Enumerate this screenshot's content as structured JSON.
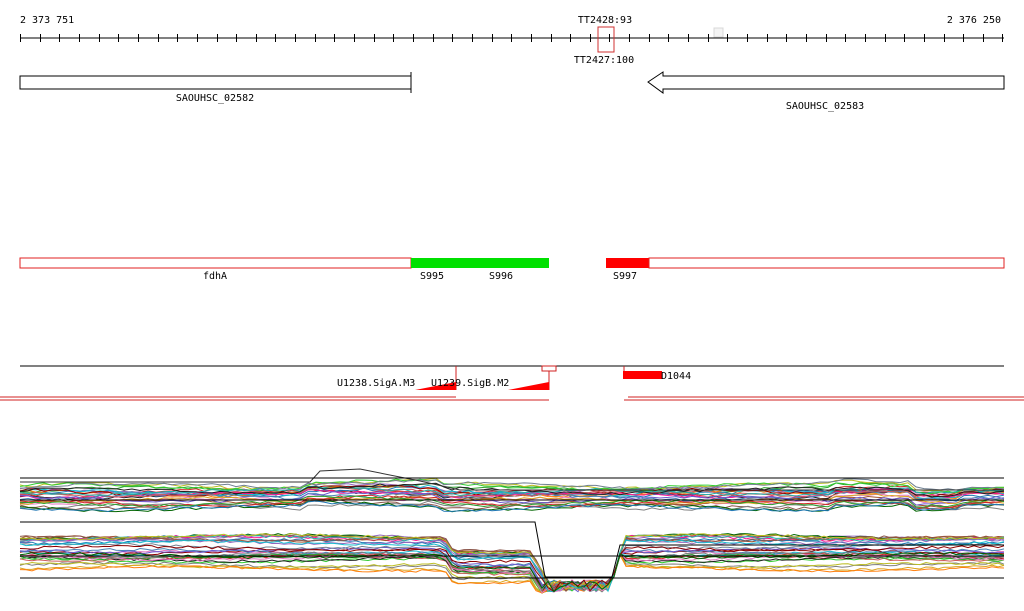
{
  "axis": {
    "start_label": "2 373 751",
    "end_label": "2 376 250",
    "terminator_top": "TT2428:93",
    "terminator_bottom": "TT2427:100"
  },
  "genes": {
    "left": "SAOUHSC_02582",
    "right": "SAOUHSC_02583"
  },
  "segments": {
    "fdhA": "fdhA",
    "s995": "S995",
    "s996": "S996",
    "s997": "S997"
  },
  "promoters": {
    "sigA": "U1238.SigA.M3",
    "sigB": "U1239.SigB.M2",
    "d1044": "D1044"
  },
  "colors": {
    "segment_outline": "#e02020",
    "segment_green": "#00e000",
    "segment_red": "#ff0000"
  }
}
